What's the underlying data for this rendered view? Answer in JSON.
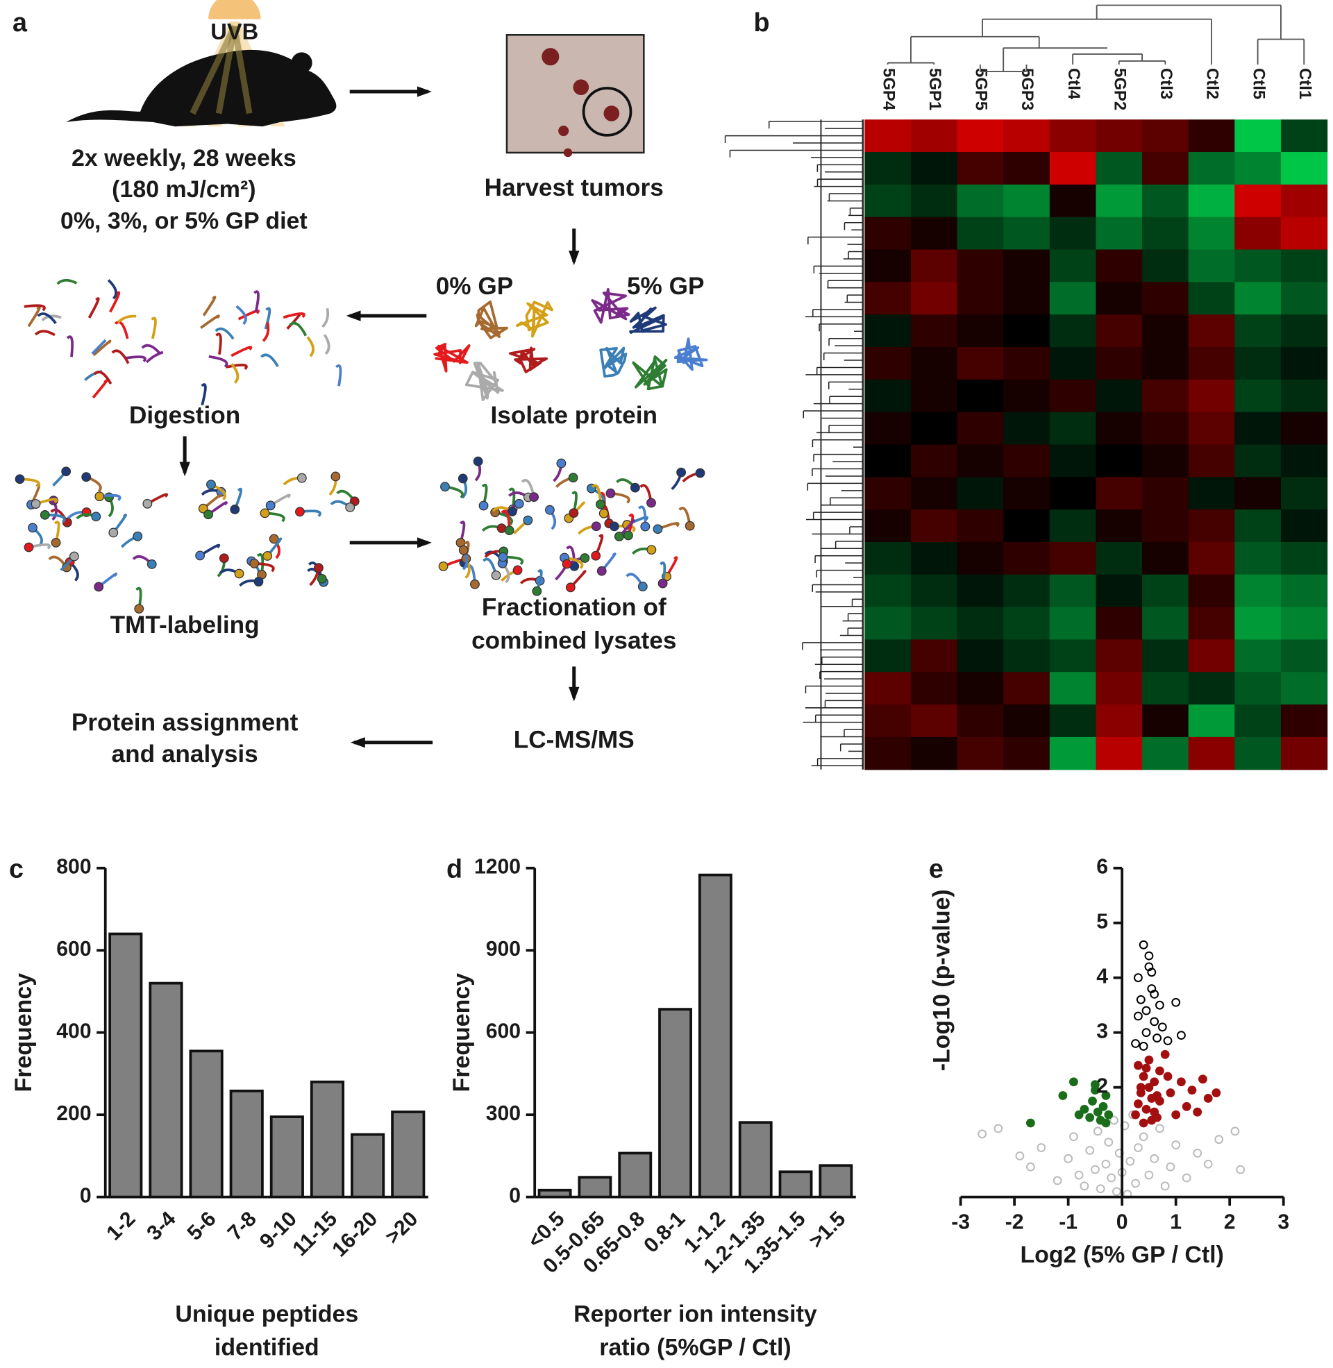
{
  "panels": [
    "a",
    "b",
    "c",
    "d",
    "e"
  ],
  "diagram": {
    "uvb": "UVB",
    "treatment": [
      "2x weekly, 28 weeks",
      "(180 mJ/cm²)",
      "0%, 3%, or 5% GP diet"
    ],
    "harvest": "Harvest tumors",
    "gp0": "0% GP",
    "gp5": "5% GP",
    "digestion": "Digestion",
    "isolate": "Isolate protein",
    "tmt": "TMT-labeling",
    "fractionation": [
      "Fractionation of",
      "combined lysates"
    ],
    "lcms": "LC-MS/MS",
    "assignment": [
      "Protein assignment",
      "and analysis"
    ]
  },
  "chart_data": [
    {
      "type": "heatmap",
      "columns": [
        "5GP4",
        "5GP1",
        "5GP5",
        "5GP3",
        "Ctl4",
        "5GP2",
        "Ctl3",
        "Ctl2",
        "Ctl5",
        "Ctl1"
      ],
      "values": [
        [
          0.8,
          0.7,
          0.9,
          0.8,
          0.6,
          0.5,
          0.4,
          0.2,
          -0.9,
          -0.3
        ],
        [
          -0.2,
          -0.1,
          0.3,
          0.2,
          0.9,
          -0.4,
          0.3,
          -0.5,
          -0.6,
          -0.9
        ],
        [
          -0.3,
          -0.2,
          -0.5,
          -0.6,
          0.1,
          -0.7,
          -0.4,
          -0.8,
          0.9,
          0.7
        ],
        [
          0.2,
          0.1,
          -0.3,
          -0.4,
          -0.2,
          -0.5,
          -0.3,
          -0.6,
          0.6,
          0.8
        ],
        [
          0.1,
          0.4,
          0.2,
          0.1,
          -0.3,
          0.2,
          -0.2,
          -0.5,
          -0.4,
          -0.3
        ],
        [
          0.3,
          0.5,
          0.2,
          0.1,
          -0.5,
          0.1,
          0.2,
          -0.3,
          -0.6,
          -0.4
        ],
        [
          -0.1,
          0.2,
          0.1,
          0.0,
          -0.2,
          0.3,
          0.1,
          0.4,
          -0.3,
          -0.2
        ],
        [
          0.2,
          0.1,
          0.3,
          0.2,
          -0.1,
          0.2,
          0.1,
          0.3,
          -0.2,
          -0.1
        ],
        [
          -0.1,
          0.1,
          0.0,
          0.1,
          0.2,
          -0.1,
          0.3,
          0.5,
          -0.3,
          -0.2
        ],
        [
          0.1,
          0.0,
          0.2,
          -0.1,
          -0.2,
          0.1,
          0.2,
          0.4,
          -0.1,
          0.1
        ],
        [
          0.0,
          0.2,
          0.1,
          0.2,
          -0.1,
          0.0,
          0.1,
          0.3,
          -0.2,
          -0.1
        ],
        [
          0.2,
          0.1,
          -0.1,
          0.1,
          0.0,
          0.3,
          0.2,
          -0.1,
          0.1,
          -0.2
        ],
        [
          0.1,
          0.3,
          0.2,
          0.0,
          -0.2,
          0.1,
          0.2,
          0.3,
          -0.3,
          -0.1
        ],
        [
          -0.2,
          -0.1,
          0.1,
          0.2,
          0.3,
          -0.2,
          0.1,
          0.4,
          -0.4,
          -0.3
        ],
        [
          -0.3,
          -0.2,
          -0.1,
          -0.2,
          -0.4,
          -0.1,
          -0.3,
          0.2,
          -0.6,
          -0.5
        ],
        [
          -0.4,
          -0.3,
          -0.2,
          -0.3,
          -0.5,
          0.2,
          -0.4,
          0.3,
          -0.7,
          -0.6
        ],
        [
          -0.2,
          0.3,
          -0.1,
          -0.2,
          -0.3,
          0.4,
          -0.2,
          0.5,
          -0.5,
          -0.4
        ],
        [
          0.4,
          0.2,
          0.1,
          0.3,
          -0.6,
          0.5,
          -0.3,
          -0.2,
          -0.4,
          -0.5
        ],
        [
          0.3,
          0.4,
          0.2,
          0.1,
          -0.2,
          0.6,
          0.1,
          -0.7,
          -0.3,
          0.2
        ],
        [
          0.2,
          0.1,
          0.3,
          0.2,
          -0.7,
          0.8,
          -0.5,
          0.6,
          -0.4,
          0.5
        ]
      ]
    },
    {
      "type": "bar",
      "ylabel": "Frequency",
      "xlabel": [
        "Unique peptides",
        "identified"
      ],
      "categories": [
        "1-2",
        "3-4",
        "5-6",
        "7-8",
        "9-10",
        "11-15",
        "16-20",
        ">20"
      ],
      "values": [
        640,
        520,
        355,
        258,
        195,
        280,
        152,
        207
      ],
      "color": "#808080",
      "ylim": [
        0,
        800
      ],
      "yticks": [
        0,
        200,
        400,
        600,
        800
      ]
    },
    {
      "type": "bar",
      "ylabel": "Frequency",
      "xlabel": [
        "Reporter ion intensity",
        "ratio (5%GP / Ctl)"
      ],
      "categories": [
        "<0.5",
        "0.5-0.65",
        "0.65-0.8",
        "0.8-1",
        "1-1.2",
        "1.2-1.35",
        "1.35-1.5",
        ">1.5"
      ],
      "values": [
        25,
        72,
        160,
        685,
        1175,
        272,
        92,
        115
      ],
      "color": "#808080",
      "ylim": [
        0,
        1200
      ],
      "yticks": [
        0,
        300,
        600,
        900,
        1200
      ]
    },
    {
      "type": "scatter",
      "ylabel": "-Log10 (p-value)",
      "xlabel": "Log2 (5% GP / Ctl)",
      "xlim": [
        -3,
        3
      ],
      "ylim": [
        0,
        6
      ],
      "xticks": [
        -3,
        -2,
        -1,
        0,
        1,
        2,
        3
      ],
      "yticks": [
        2,
        3,
        4,
        5,
        6
      ],
      "series": [
        {
          "color": "#bbbbbb",
          "filled": false,
          "x": [
            -2.6,
            -2.3,
            -1.9,
            -1.7,
            -1.5,
            -1.2,
            -1.0,
            -0.9,
            -0.8,
            -0.7,
            -0.6,
            -0.5,
            -0.45,
            -0.4,
            -0.3,
            -0.25,
            -0.2,
            -0.15,
            -0.1,
            -0.05,
            0,
            0.05,
            0.1,
            0.15,
            0.2,
            0.25,
            0.3,
            0.4,
            0.5,
            0.6,
            0.7,
            0.8,
            0.9,
            1.0,
            1.2,
            1.4,
            1.6,
            1.8,
            2.1,
            2.2
          ],
          "values": [
            1.15,
            1.25,
            0.75,
            0.55,
            0.9,
            0.3,
            0.7,
            1.1,
            0.4,
            0.2,
            0.85,
            0.5,
            1.2,
            0.15,
            0.6,
            1.0,
            0.35,
            1.4,
            0.1,
            0.8,
            0.45,
            1.3,
            0.05,
            0.65,
            1.5,
            0.25,
            0.9,
            1.1,
            0.4,
            0.7,
            1.25,
            0.2,
            0.55,
            0.95,
            0.35,
            0.8,
            0.6,
            1.05,
            1.2,
            0.5
          ]
        },
        {
          "color": "#1a6e1a",
          "filled": true,
          "x": [
            -1.7,
            -1.1,
            -0.9,
            -0.8,
            -0.7,
            -0.6,
            -0.55,
            -0.5,
            -0.45,
            -0.4,
            -0.35,
            -0.3,
            -0.25,
            -0.5,
            -0.3
          ],
          "values": [
            1.35,
            1.85,
            2.1,
            1.5,
            1.6,
            1.45,
            1.75,
            1.95,
            1.55,
            1.4,
            1.65,
            1.85,
            1.5,
            2.05,
            1.35
          ]
        },
        {
          "color": "#a30f0f",
          "filled": true,
          "x": [
            0.25,
            0.3,
            0.35,
            0.4,
            0.45,
            0.5,
            0.55,
            0.6,
            0.65,
            0.7,
            0.3,
            0.4,
            0.5,
            0.6,
            0.7,
            0.8,
            0.9,
            1.0,
            1.1,
            1.2,
            1.3,
            1.4,
            1.5,
            1.6,
            1.75,
            0.35,
            0.45,
            0.55,
            0.65,
            0.85
          ],
          "values": [
            1.5,
            2.4,
            1.9,
            2.2,
            1.6,
            2.5,
            1.8,
            2.1,
            1.45,
            2.3,
            1.7,
            1.35,
            2.0,
            1.55,
            1.75,
            2.6,
            1.9,
            1.5,
            2.1,
            1.65,
            1.95,
            1.55,
            2.15,
            1.8,
            1.9,
            2.0,
            2.35,
            1.4,
            1.85,
            2.2
          ]
        },
        {
          "color": "#000000",
          "filled": false,
          "x": [
            0.25,
            0.3,
            0.35,
            0.4,
            0.45,
            0.5,
            0.55,
            0.6,
            0.65,
            0.7,
            0.3,
            0.4,
            0.5,
            0.6,
            0.75,
            0.85,
            1.0,
            1.1,
            0.45,
            0.55
          ],
          "values": [
            2.8,
            3.3,
            3.6,
            4.6,
            3.0,
            4.4,
            3.8,
            3.2,
            2.9,
            3.5,
            4.0,
            2.75,
            4.2,
            3.7,
            3.1,
            2.85,
            3.55,
            2.95,
            3.4,
            4.1
          ]
        }
      ]
    }
  ]
}
